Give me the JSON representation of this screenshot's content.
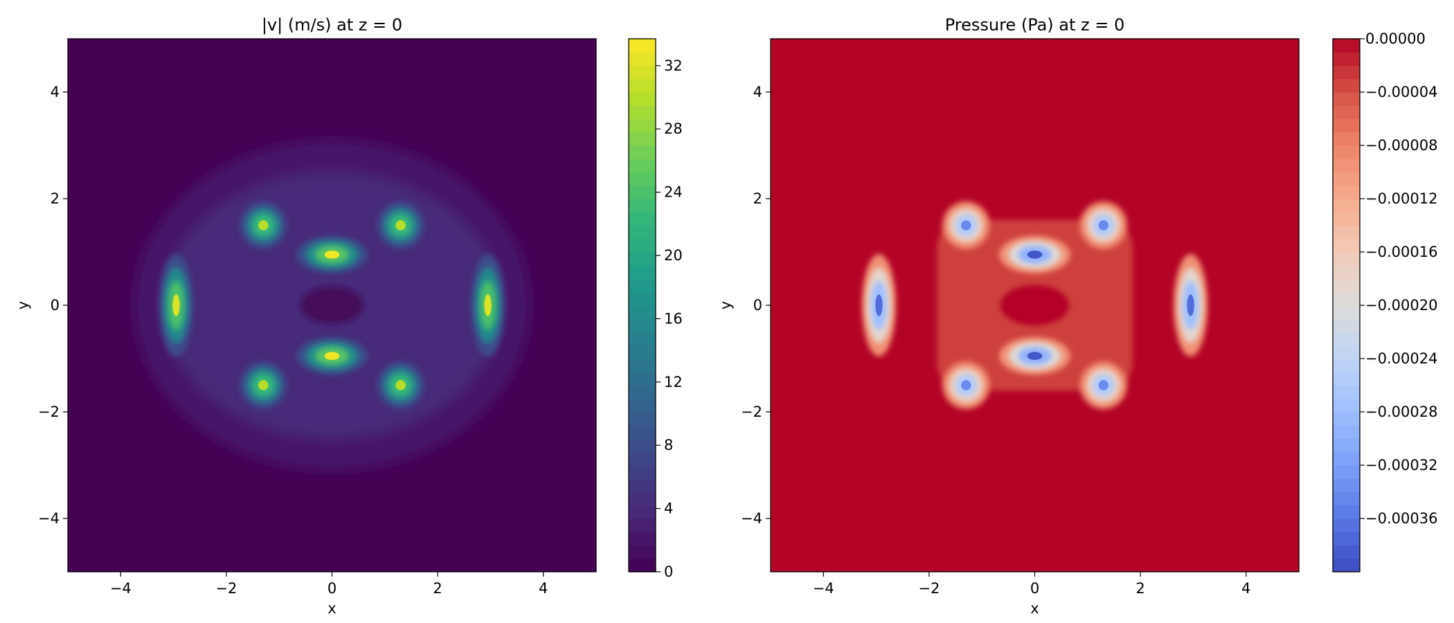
{
  "chart_data": [
    {
      "type": "heatmap",
      "title": "|v| (m/s) at z = 0",
      "xlabel": "x",
      "ylabel": "y",
      "xlim": [
        -5,
        5
      ],
      "ylim": [
        -5,
        5
      ],
      "x_ticks": [
        -4,
        -2,
        0,
        2,
        4
      ],
      "y_ticks": [
        -4,
        -2,
        0,
        2,
        4
      ],
      "colormap": "viridis",
      "colorbar": {
        "range": [
          0,
          33.7
        ],
        "ticks": [
          0,
          4,
          8,
          12,
          16,
          20,
          24,
          28,
          32
        ],
        "tick_labels": [
          "0",
          "4",
          "8",
          "12",
          "16",
          "20",
          "24",
          "28",
          "32"
        ]
      },
      "background_value": 0,
      "features": [
        {
          "x": 0,
          "y": 0.95,
          "value": 33
        },
        {
          "x": 0,
          "y": -0.95,
          "value": 33
        },
        {
          "x": -2.95,
          "y": 0,
          "value": 32
        },
        {
          "x": 2.95,
          "y": 0,
          "value": 32
        },
        {
          "x": -1.3,
          "y": 1.5,
          "value": 30
        },
        {
          "x": 1.3,
          "y": 1.5,
          "value": 30
        },
        {
          "x": -1.3,
          "y": -1.5,
          "value": 30
        },
        {
          "x": 1.3,
          "y": -1.5,
          "value": 30
        }
      ],
      "grid": false
    },
    {
      "type": "heatmap",
      "title": "Pressure (Pa) at z = 0",
      "xlabel": "x",
      "ylabel": "y",
      "xlim": [
        -5,
        5
      ],
      "ylim": [
        -5,
        5
      ],
      "x_ticks": [
        -4,
        -2,
        0,
        2,
        4
      ],
      "y_ticks": [
        -4,
        -2,
        0,
        2,
        4
      ],
      "colormap": "coolwarm",
      "colorbar": {
        "range": [
          -0.0004,
          0
        ],
        "ticks": [
          0,
          -4e-05,
          -8e-05,
          -0.00012,
          -0.00016,
          -0.0002,
          -0.00024,
          -0.00028,
          -0.00032,
          -0.00036
        ],
        "tick_labels": [
          "0.00000",
          "−0.00004",
          "−0.00008",
          "−0.00012",
          "−0.00016",
          "−0.00020",
          "−0.00024",
          "−0.00028",
          "−0.00032",
          "−0.00036"
        ]
      },
      "background_value": 0,
      "features": [
        {
          "x": 0,
          "y": 0.95,
          "value": -0.00039
        },
        {
          "x": 0,
          "y": -0.95,
          "value": -0.00039
        },
        {
          "x": -2.95,
          "y": 0,
          "value": -0.00037
        },
        {
          "x": 2.95,
          "y": 0,
          "value": -0.00037
        },
        {
          "x": -1.3,
          "y": 1.5,
          "value": -0.00034
        },
        {
          "x": 1.3,
          "y": 1.5,
          "value": -0.00034
        },
        {
          "x": -1.3,
          "y": -1.5,
          "value": -0.00034
        },
        {
          "x": 1.3,
          "y": -1.5,
          "value": -0.00034
        }
      ],
      "grid": false
    }
  ]
}
